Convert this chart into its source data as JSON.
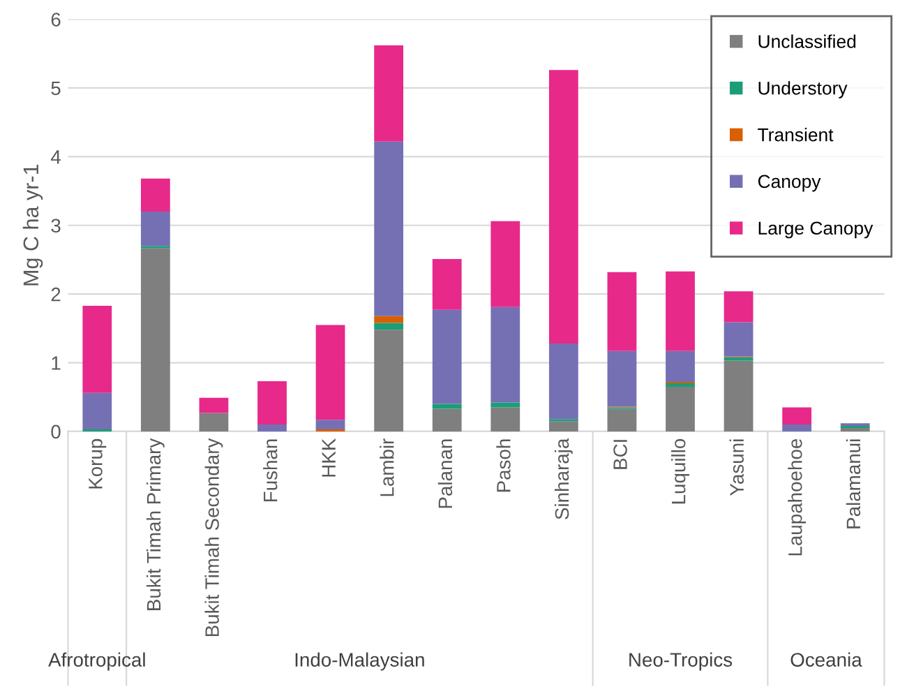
{
  "chart_data": {
    "type": "bar",
    "stacked": true,
    "ylabel": "Mg C ha yr-1",
    "categories": [
      "Korup",
      "Bukit Timah Primary",
      "Bukit Timah Secondary",
      "Fushan",
      "HKK",
      "Lambir",
      "Palanan",
      "Pasoh",
      "Sinharaja",
      "BCI",
      "Luquillo",
      "Yasuni",
      "Laupahoehoe",
      "Palamanui"
    ],
    "series": [
      {
        "name": "Unclassified",
        "color": "#7f7f7f",
        "values": [
          0,
          2.67,
          0.27,
          0,
          0,
          1.48,
          0.33,
          0.35,
          0.15,
          0.33,
          0.65,
          1.03,
          0,
          0.05
        ]
      },
      {
        "name": "Understory",
        "color": "#1b9e77",
        "values": [
          0.03,
          0.03,
          0,
          0,
          0,
          0.1,
          0.07,
          0.07,
          0.03,
          0.02,
          0.05,
          0.05,
          0,
          0.03
        ]
      },
      {
        "name": "Transient",
        "color": "#d95f02",
        "values": [
          0,
          0,
          0,
          0,
          0.03,
          0.1,
          0,
          0,
          0,
          0.01,
          0.02,
          0.01,
          0,
          0
        ]
      },
      {
        "name": "Canopy",
        "color": "#7570b3",
        "values": [
          0.53,
          0.5,
          0,
          0.1,
          0.14,
          2.54,
          1.37,
          1.39,
          1.1,
          0.81,
          0.45,
          0.5,
          0.1,
          0.04
        ]
      },
      {
        "name": "Large Canopy",
        "color": "#e7298a",
        "values": [
          1.27,
          0.48,
          0.22,
          0.63,
          1.38,
          1.4,
          0.74,
          1.25,
          3.98,
          1.15,
          1.16,
          0.45,
          0.25,
          0
        ]
      }
    ],
    "ylim": [
      0,
      6
    ],
    "yticks": [
      0,
      1,
      2,
      3,
      4,
      5,
      6
    ],
    "grid": "y",
    "legend": "top right",
    "annotations": [
      "Afrotropical",
      "Indo-Malaysian",
      "Neo-Tropics",
      "Oceania"
    ]
  }
}
